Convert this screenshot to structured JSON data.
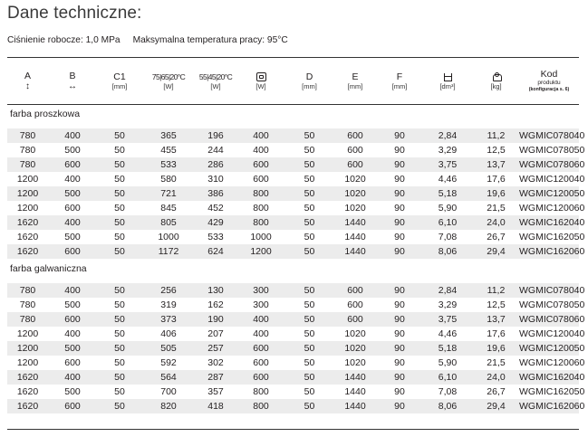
{
  "title": "Dane techniczne:",
  "info": {
    "pressure": "Ciśnienie robocze: 1,0 MPa",
    "temperature": "Maksymalna temperatura pracy: 95°C"
  },
  "columns": [
    {
      "key": "A",
      "label": "A",
      "sub": "↕",
      "unit": ""
    },
    {
      "key": "B",
      "label": "B",
      "sub": "↔",
      "unit": ""
    },
    {
      "key": "C1",
      "label": "C1",
      "sub": "",
      "unit": "[mm]"
    },
    {
      "key": "p75",
      "label": "75|65|20°C",
      "sub": "",
      "unit": "[W]"
    },
    {
      "key": "p55",
      "label": "55|45|20°C",
      "sub": "",
      "unit": "[W]"
    },
    {
      "key": "pel",
      "label": "",
      "icon": "heater-element-icon",
      "unit": "[W]"
    },
    {
      "key": "D",
      "label": "D",
      "sub": "",
      "unit": "[mm]"
    },
    {
      "key": "E",
      "label": "E",
      "sub": "",
      "unit": "[mm]"
    },
    {
      "key": "F",
      "label": "F",
      "sub": "",
      "unit": "[mm]"
    },
    {
      "key": "vol",
      "label": "",
      "icon": "water-volume-icon",
      "unit": "[dm³]"
    },
    {
      "key": "mass",
      "label": "",
      "icon": "weight-icon",
      "unit": "[kg]"
    },
    {
      "key": "code",
      "label": "Kod",
      "sub": "produktu",
      "unit": "(konfiguracja s. 6)"
    }
  ],
  "sections": [
    {
      "name": "farba proszkowa",
      "rows": [
        [
          "780",
          "400",
          "50",
          "365",
          "196",
          "400",
          "50",
          "600",
          "90",
          "2,84",
          "11,2",
          "WGMIC078040"
        ],
        [
          "780",
          "500",
          "50",
          "455",
          "244",
          "400",
          "50",
          "600",
          "90",
          "3,29",
          "12,5",
          "WGMIC078050"
        ],
        [
          "780",
          "600",
          "50",
          "533",
          "286",
          "600",
          "50",
          "600",
          "90",
          "3,75",
          "13,7",
          "WGMIC078060"
        ],
        [
          "1200",
          "400",
          "50",
          "580",
          "310",
          "600",
          "50",
          "1020",
          "90",
          "4,46",
          "17,6",
          "WGMIC120040"
        ],
        [
          "1200",
          "500",
          "50",
          "721",
          "386",
          "800",
          "50",
          "1020",
          "90",
          "5,18",
          "19,6",
          "WGMIC120050"
        ],
        [
          "1200",
          "600",
          "50",
          "845",
          "452",
          "800",
          "50",
          "1020",
          "90",
          "5,90",
          "21,5",
          "WGMIC120060"
        ],
        [
          "1620",
          "400",
          "50",
          "805",
          "429",
          "800",
          "50",
          "1440",
          "90",
          "6,10",
          "24,0",
          "WGMIC162040"
        ],
        [
          "1620",
          "500",
          "50",
          "1000",
          "533",
          "1000",
          "50",
          "1440",
          "90",
          "7,08",
          "26,7",
          "WGMIC162050"
        ],
        [
          "1620",
          "600",
          "50",
          "1172",
          "624",
          "1200",
          "50",
          "1440",
          "90",
          "8,06",
          "29,4",
          "WGMIC162060"
        ]
      ]
    },
    {
      "name": "farba galwaniczna",
      "rows": [
        [
          "780",
          "400",
          "50",
          "256",
          "130",
          "300",
          "50",
          "600",
          "90",
          "2,84",
          "11,2",
          "WGMIC078040"
        ],
        [
          "780",
          "500",
          "50",
          "319",
          "162",
          "300",
          "50",
          "600",
          "90",
          "3,29",
          "12,5",
          "WGMIC078050"
        ],
        [
          "780",
          "600",
          "50",
          "373",
          "190",
          "400",
          "50",
          "600",
          "90",
          "3,75",
          "13,7",
          "WGMIC078060"
        ],
        [
          "1200",
          "400",
          "50",
          "406",
          "207",
          "400",
          "50",
          "1020",
          "90",
          "4,46",
          "17,6",
          "WGMIC120040"
        ],
        [
          "1200",
          "500",
          "50",
          "505",
          "257",
          "600",
          "50",
          "1020",
          "90",
          "5,18",
          "19,6",
          "WGMIC120050"
        ],
        [
          "1200",
          "600",
          "50",
          "592",
          "302",
          "600",
          "50",
          "1020",
          "90",
          "5,90",
          "21,5",
          "WGMIC120060"
        ],
        [
          "1620",
          "400",
          "50",
          "564",
          "287",
          "600",
          "50",
          "1440",
          "90",
          "6,10",
          "24,0",
          "WGMIC162040"
        ],
        [
          "1620",
          "500",
          "50",
          "700",
          "357",
          "800",
          "50",
          "1440",
          "90",
          "7,08",
          "26,7",
          "WGMIC162050"
        ],
        [
          "1620",
          "600",
          "50",
          "820",
          "418",
          "800",
          "50",
          "1440",
          "90",
          "8,06",
          "29,4",
          "WGMIC162060"
        ]
      ]
    }
  ]
}
